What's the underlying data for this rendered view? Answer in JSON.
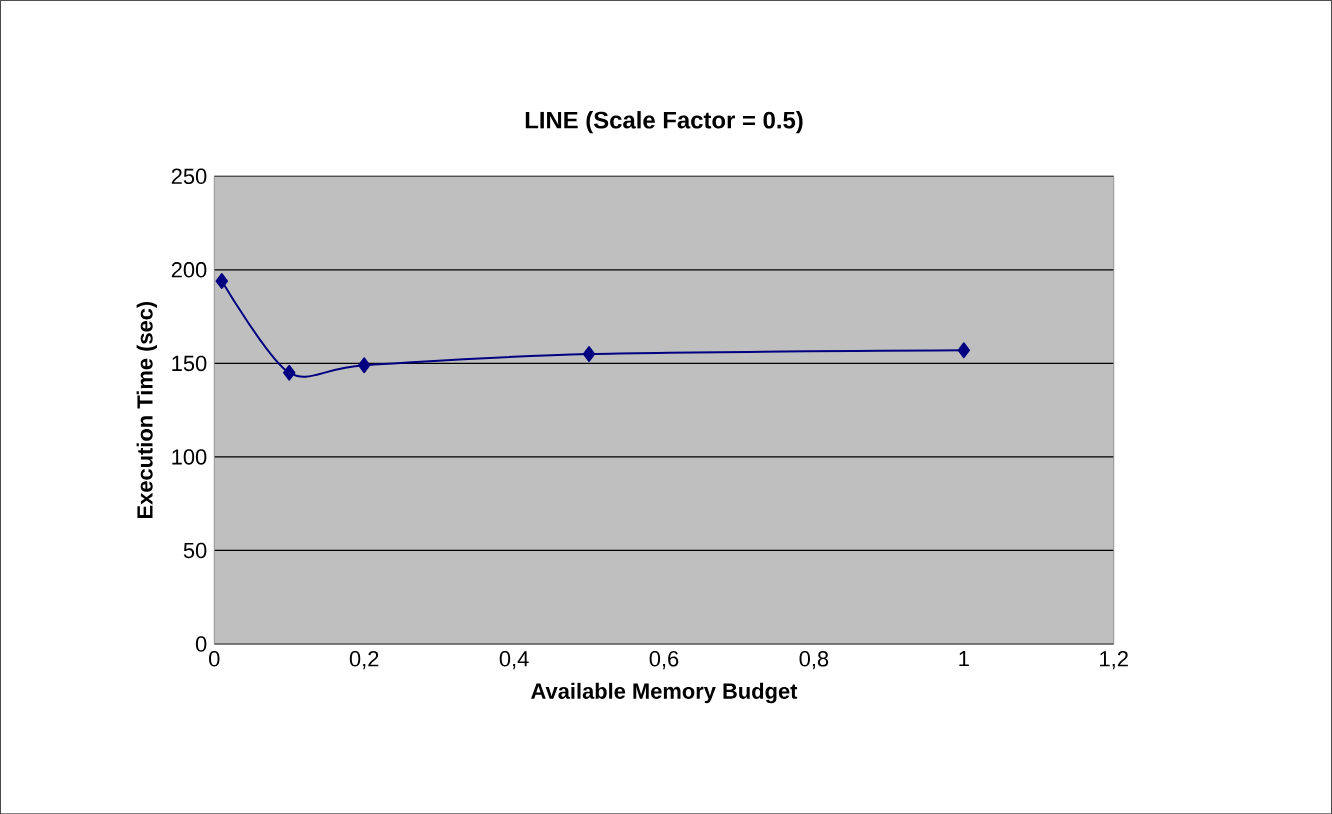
{
  "chart_data": {
    "type": "line",
    "title": "LINE (Scale Factor = 0.5)",
    "xlabel": "Available Memory Budget",
    "ylabel": "Execution Time (sec)",
    "x": [
      0.01,
      0.1,
      0.2,
      0.5,
      1
    ],
    "series": [
      {
        "color": "#000080",
        "values": [
          194,
          145,
          149,
          155,
          157
        ]
      }
    ],
    "xlim": [
      0,
      1.2
    ],
    "ylim": [
      0,
      250
    ],
    "xticks": [
      0,
      {
        "value": 0.2,
        "label": "0,2"
      },
      {
        "value": 0.4,
        "label": "0,4"
      },
      {
        "value": 0.6,
        "label": "0,6"
      },
      {
        "value": 0.8,
        "label": "0,8"
      },
      1,
      {
        "value": 1.2,
        "label": "1,2"
      }
    ],
    "yticks": [
      0,
      50,
      100,
      150,
      200,
      250
    ],
    "grid": "y",
    "marker": "diamond",
    "line_style": "solid"
  }
}
